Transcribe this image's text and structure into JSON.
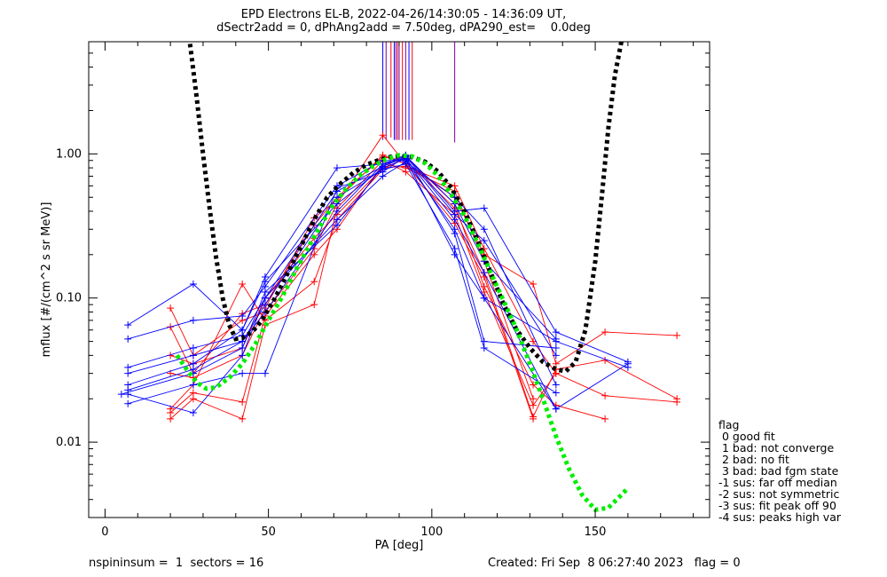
{
  "title_line1": "EPD Electrons EL-B, 2022-04-26/14:30:05 - 14:36:09 UT,",
  "title_line2": "dSectr2add = 0, dPhAng2add = 7.50deg, dPA290_est=    0.0deg",
  "legend": {
    "heading": "flag",
    "items": [
      " 0 good fit",
      " 1 bad: not converge",
      " 2 bad: no fit",
      " 3 bad: bad fgm state",
      "-1 sus: far off median",
      "-2 sus: not symmetric",
      "-3 sus: fit peak off 90",
      "-4 sus: peaks high var"
    ]
  },
  "footer": {
    "left": "nspininsum =  1  sectors = 16",
    "right": "Created: Fri Sep  8 06:27:40 2023   flag = 0"
  },
  "colors": {
    "red": "#ff0000",
    "blue": "#0000ff",
    "purple": "#8000a0",
    "fit_black": "#000000",
    "fit_green": "#00ee00"
  },
  "chart_data": {
    "type": "line",
    "xlabel": "PA [deg]",
    "ylabel": "mflux [#/(cm^2 s sr MeV)]",
    "xlim": [
      -5,
      185
    ],
    "ylim": [
      0.003,
      6.0
    ],
    "yscale": "log",
    "xticks": [
      0,
      50,
      100,
      150
    ],
    "xtick_labels": [
      "0",
      "50",
      "100",
      "150"
    ],
    "yticks": [
      0.01,
      0.1,
      1.0
    ],
    "ytick_labels": [
      "0.01",
      "0.10",
      "1.00"
    ],
    "series": [
      {
        "color": "red",
        "x": [
          20,
          27,
          42,
          49,
          64,
          71,
          85,
          92,
          107,
          116,
          131,
          138,
          153,
          175
        ],
        "y": [
          0.085,
          0.04,
          0.07,
          0.08,
          0.22,
          0.45,
          1.35,
          0.85,
          0.5,
          0.2,
          0.125,
          0.035,
          0.058,
          0.055
        ]
      },
      {
        "color": "red",
        "x": [
          20,
          27,
          42,
          49,
          64,
          71,
          85,
          92,
          107,
          116,
          131,
          138,
          153,
          175
        ],
        "y": [
          0.063,
          0.03,
          0.078,
          0.09,
          0.32,
          0.5,
          0.95,
          0.9,
          0.42,
          0.15,
          0.015,
          0.032,
          0.037,
          0.02
        ]
      },
      {
        "color": "red",
        "x": [
          20,
          27,
          42,
          49,
          64,
          71,
          85,
          92,
          107,
          116,
          131,
          138,
          153,
          175
        ],
        "y": [
          0.04,
          0.035,
          0.045,
          0.1,
          0.26,
          0.38,
          0.8,
          0.82,
          0.6,
          0.22,
          0.05,
          0.03,
          0.021,
          0.019
        ]
      },
      {
        "color": "red",
        "x": [
          20,
          27,
          42,
          49,
          64,
          71,
          85,
          92,
          107,
          116,
          131,
          138,
          153
        ],
        "y": [
          0.017,
          0.025,
          0.125,
          0.07,
          0.13,
          0.35,
          0.78,
          0.95,
          0.45,
          0.12,
          0.025,
          0.018,
          0.0145
        ]
      },
      {
        "color": "red",
        "x": [
          20,
          27,
          42,
          49,
          64,
          71,
          85,
          92,
          107,
          116,
          131,
          138
        ],
        "y": [
          0.0145,
          0.02,
          0.0145,
          0.065,
          0.09,
          0.42,
          0.9,
          0.75,
          0.38,
          0.11,
          0.018,
          0.03
        ]
      },
      {
        "color": "red",
        "x": [
          20,
          27,
          42,
          49,
          64,
          71,
          85,
          92,
          107,
          116,
          131
        ],
        "y": [
          0.016,
          0.022,
          0.019,
          0.075,
          0.2,
          0.3,
          0.85,
          0.8,
          0.55,
          0.18,
          0.02
        ]
      },
      {
        "color": "red",
        "x": [
          20,
          27,
          42,
          49,
          64,
          71,
          85,
          92,
          107,
          116,
          131
        ],
        "y": [
          0.03,
          0.028,
          0.04,
          0.085,
          0.36,
          0.48,
          0.98,
          0.85,
          0.33,
          0.14,
          0.0145
        ]
      },
      {
        "color": "blue",
        "x": [
          7,
          27,
          42,
          49,
          71,
          85,
          92,
          107,
          116,
          138,
          160
        ],
        "y": [
          0.065,
          0.125,
          0.06,
          0.14,
          0.8,
          0.85,
          0.98,
          0.4,
          0.42,
          0.058,
          0.036
        ]
      },
      {
        "color": "blue",
        "x": [
          7,
          27,
          42,
          49,
          71,
          85,
          92,
          107,
          116,
          138,
          160
        ],
        "y": [
          0.052,
          0.07,
          0.075,
          0.12,
          0.6,
          0.9,
          0.9,
          0.3,
          0.1,
          0.05,
          0.033
        ]
      },
      {
        "color": "blue",
        "x": [
          7,
          27,
          42,
          49,
          71,
          85,
          92,
          107,
          116,
          138
        ],
        "y": [
          0.033,
          0.045,
          0.055,
          0.1,
          0.55,
          0.82,
          0.95,
          0.28,
          0.05,
          0.045
        ]
      },
      {
        "color": "blue",
        "x": [
          7,
          27,
          42,
          49,
          71,
          85,
          92,
          107,
          116,
          138
        ],
        "y": [
          0.03,
          0.04,
          0.05,
          0.09,
          0.5,
          0.78,
          0.85,
          0.22,
          0.045,
          0.022
        ]
      },
      {
        "color": "blue",
        "x": [
          7,
          27,
          42,
          49,
          71,
          85,
          92,
          107,
          116,
          138
        ],
        "y": [
          0.025,
          0.035,
          0.06,
          0.13,
          0.45,
          0.8,
          0.92,
          0.2,
          0.1,
          0.017
        ]
      },
      {
        "color": "blue",
        "x": [
          7,
          27,
          42,
          49,
          71,
          85,
          92,
          107,
          116,
          138,
          160
        ],
        "y": [
          0.023,
          0.032,
          0.05,
          0.08,
          0.4,
          0.85,
          0.93,
          0.35,
          0.15,
          0.017,
          0.035
        ]
      },
      {
        "color": "blue",
        "x": [
          7,
          27,
          42,
          49,
          71,
          85,
          92,
          107,
          116,
          138
        ],
        "y": [
          0.0215,
          0.016,
          0.04,
          0.1,
          0.35,
          0.7,
          0.88,
          0.5,
          0.3,
          0.025
        ]
      },
      {
        "color": "blue",
        "x": [
          7,
          27,
          42,
          49,
          71,
          85,
          92,
          107,
          116,
          138
        ],
        "y": [
          0.0185,
          0.025,
          0.03,
          0.03,
          0.58,
          0.75,
          0.96,
          0.38,
          0.25,
          0.04
        ]
      },
      {
        "color": "blue",
        "x": [
          5,
          27,
          42,
          49,
          71,
          85,
          92,
          107,
          116,
          138
        ],
        "y": [
          0.0215,
          0.03,
          0.045,
          0.11,
          0.32,
          0.82,
          0.97,
          0.45,
          0.18,
          0.052
        ]
      }
    ],
    "fits": [
      {
        "color": "fit_black",
        "x": [
          26,
          28,
          30,
          32,
          34,
          36,
          38,
          40,
          42,
          45,
          48,
          52,
          56,
          60,
          64,
          68,
          72,
          76,
          80,
          84,
          88,
          91,
          94,
          98,
          102,
          106,
          110,
          114,
          118,
          122,
          126,
          130,
          134,
          138,
          141,
          144,
          147,
          150,
          152,
          154,
          156,
          158
        ],
        "y": [
          5.8,
          2.5,
          1.0,
          0.42,
          0.19,
          0.1,
          0.065,
          0.052,
          0.053,
          0.058,
          0.07,
          0.1,
          0.15,
          0.23,
          0.35,
          0.5,
          0.62,
          0.74,
          0.84,
          0.91,
          0.96,
          0.97,
          0.95,
          0.88,
          0.75,
          0.58,
          0.4,
          0.25,
          0.15,
          0.09,
          0.06,
          0.045,
          0.036,
          0.032,
          0.031,
          0.036,
          0.06,
          0.18,
          0.5,
          1.5,
          3.5,
          6.0
        ]
      },
      {
        "color": "fit_green",
        "x": [
          22,
          25,
          28,
          31,
          34,
          38,
          42,
          46,
          50,
          54,
          58,
          62,
          66,
          70,
          74,
          78,
          82,
          86,
          90,
          94,
          98,
          102,
          106,
          110,
          114,
          118,
          122,
          126,
          130,
          134,
          138,
          142,
          146,
          150,
          154,
          158,
          160
        ],
        "y": [
          0.04,
          0.032,
          0.026,
          0.0235,
          0.024,
          0.028,
          0.035,
          0.048,
          0.07,
          0.1,
          0.15,
          0.22,
          0.32,
          0.45,
          0.58,
          0.71,
          0.82,
          0.92,
          0.98,
          0.96,
          0.86,
          0.7,
          0.52,
          0.37,
          0.24,
          0.15,
          0.095,
          0.06,
          0.035,
          0.02,
          0.011,
          0.0065,
          0.0043,
          0.0034,
          0.0035,
          0.0043,
          0.0048
        ]
      }
    ],
    "vlines": {
      "x": [
        85.0,
        86.0,
        87.5,
        88.5,
        89.0,
        89.5,
        90.0,
        91.0,
        92.0,
        93.0,
        94.0,
        107.0
      ],
      "colors": [
        "blue",
        "purple",
        "red",
        "blue",
        "purple",
        "red",
        "purple",
        "red",
        "purple",
        "blue",
        "red",
        "purple"
      ],
      "y_bottom": [
        1.25,
        1.25,
        1.3,
        1.25,
        1.25,
        1.25,
        1.25,
        1.25,
        1.25,
        1.25,
        1.25,
        1.2
      ]
    }
  }
}
